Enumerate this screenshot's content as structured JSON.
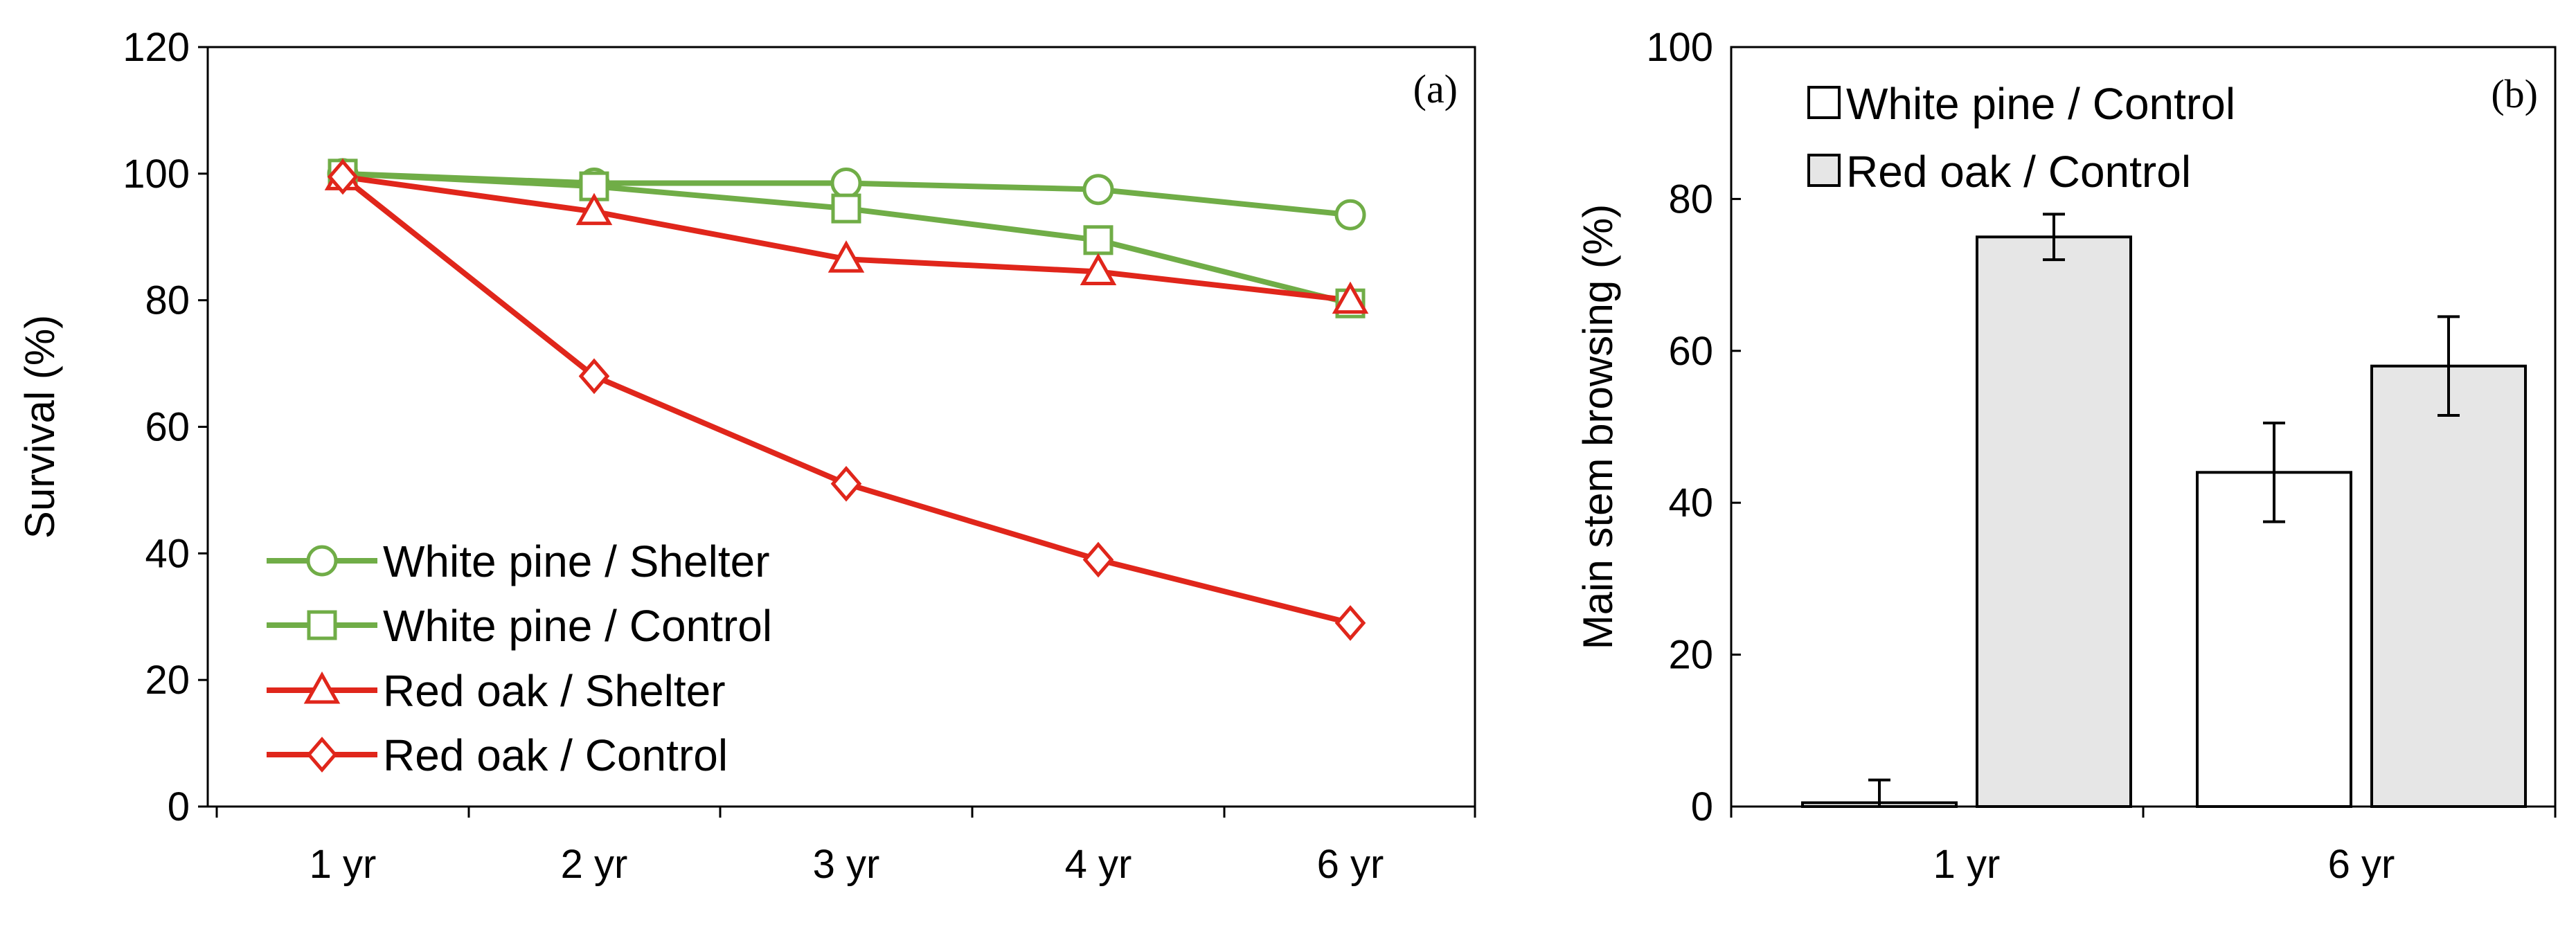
{
  "chart_data": [
    {
      "type": "line",
      "panel_label": "(a)",
      "ylabel": "Survival (%)",
      "xlabel": "",
      "categories": [
        "1 yr",
        "2 yr",
        "3 yr",
        "4 yr",
        "6 yr"
      ],
      "ylim": [
        0,
        120
      ],
      "yticks": [
        0,
        20,
        40,
        60,
        80,
        100,
        120
      ],
      "legend_position": "bottom-left",
      "series": [
        {
          "name": "White pine / Shelter",
          "color": "#70ad47",
          "marker": "circle",
          "values": [
            100,
            98.5,
            98.5,
            97.5,
            93.5
          ]
        },
        {
          "name": "White pine / Control",
          "color": "#70ad47",
          "marker": "square",
          "values": [
            100,
            98,
            94.5,
            89.5,
            79.5
          ]
        },
        {
          "name": "Red oak / Shelter",
          "color": "#e0261b",
          "marker": "triangle",
          "values": [
            99.5,
            94,
            86.5,
            84.5,
            80
          ]
        },
        {
          "name": "Red oak / Control",
          "color": "#e0261b",
          "marker": "diamond",
          "values": [
            99.5,
            68,
            51,
            39,
            29
          ]
        }
      ]
    },
    {
      "type": "bar",
      "panel_label": "(b)",
      "ylabel": "Main stem browsing (%)",
      "xlabel": "",
      "categories": [
        "1 yr",
        "6 yr"
      ],
      "ylim": [
        0,
        100
      ],
      "yticks": [
        0,
        20,
        40,
        60,
        80,
        100
      ],
      "legend_position": "top-left",
      "series": [
        {
          "name": "White pine / Control",
          "fill": "#ffffff",
          "values": [
            0.5,
            44
          ],
          "errors": [
            3,
            6.5
          ]
        },
        {
          "name": "Red oak / Control",
          "fill": "#e6e6e6",
          "values": [
            75,
            58
          ],
          "errors": [
            3,
            6.5
          ]
        }
      ]
    }
  ]
}
